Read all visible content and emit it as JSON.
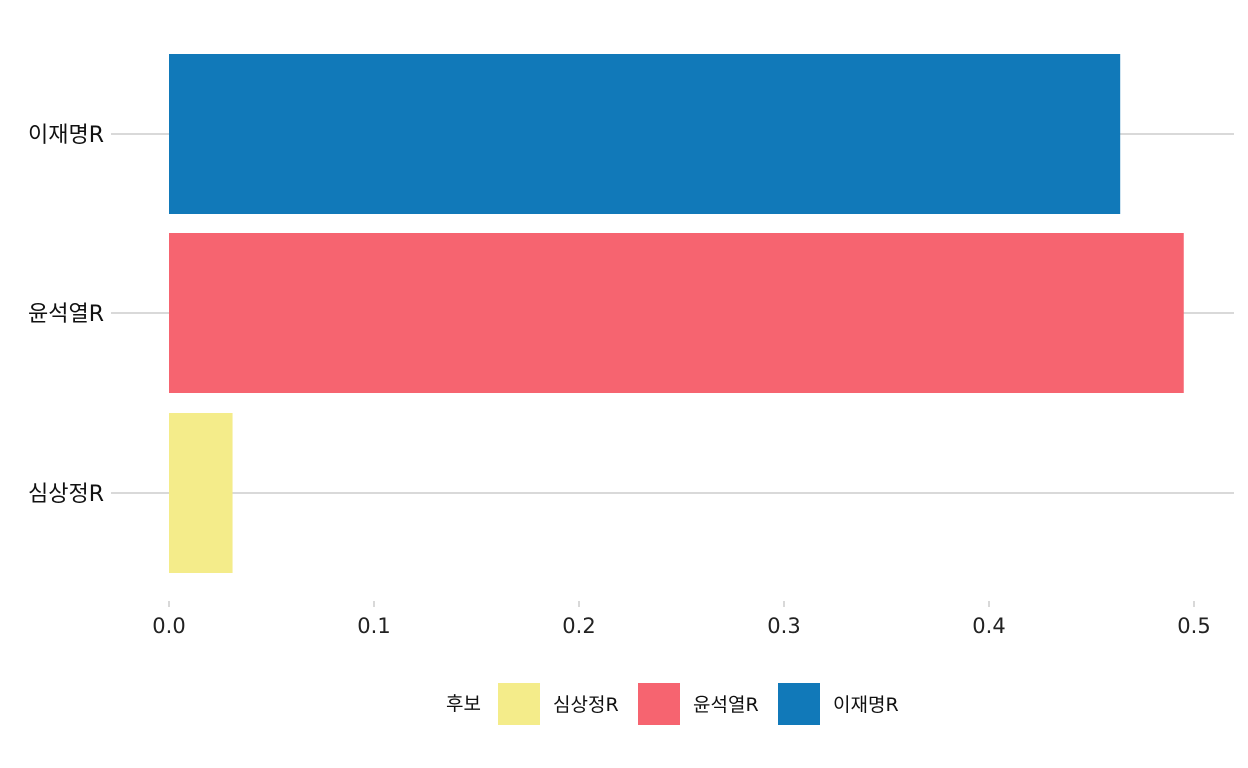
{
  "chart_data": {
    "type": "bar",
    "orientation": "horizontal",
    "categories": [
      "이재명R",
      "윤석열R",
      "심상정R"
    ],
    "values": [
      0.464,
      0.495,
      0.031
    ],
    "colors": [
      "#1179B9",
      "#F66470",
      "#F4EC8A"
    ],
    "xlim": [
      0,
      0.5
    ],
    "xticks": [
      "0.0",
      "0.1",
      "0.2",
      "0.3",
      "0.4",
      "0.5"
    ],
    "xtick_values": [
      0,
      0.1,
      0.2,
      0.3,
      0.4,
      0.5
    ],
    "grid": "horizontal-major",
    "legend": {
      "title": "후보",
      "position": "bottom",
      "entries": [
        {
          "label": "심상정R",
          "color": "#F4EC8A"
        },
        {
          "label": "윤석열R",
          "color": "#F66470"
        },
        {
          "label": "이재명R",
          "color": "#1179B9"
        }
      ]
    },
    "title": "",
    "xlabel": "",
    "ylabel": ""
  }
}
